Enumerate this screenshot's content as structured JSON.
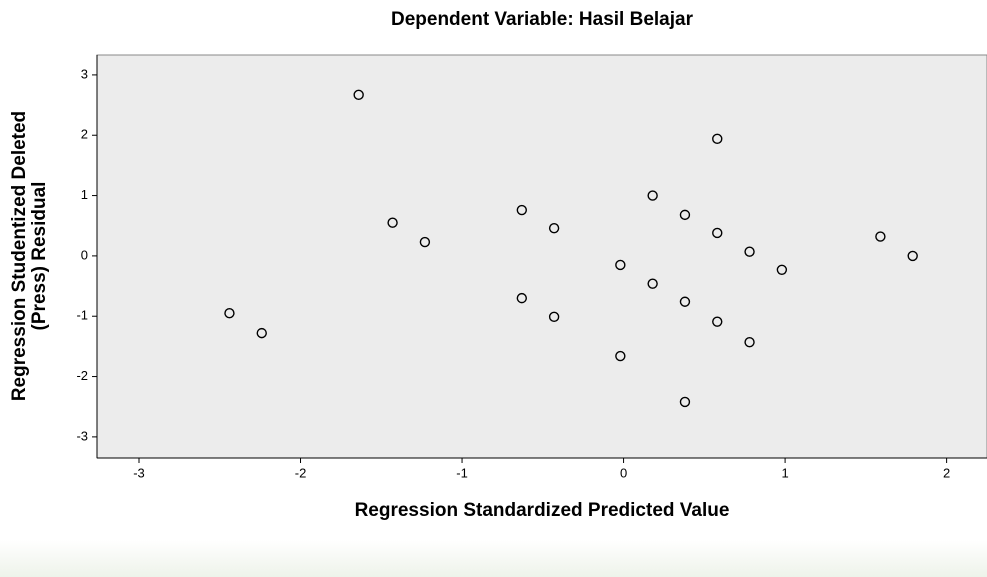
{
  "chart_data": {
    "type": "scatter",
    "title": "Dependent Variable: Hasil Belajar",
    "xlabel": "Regression Standardized Predicted Value",
    "ylabel": [
      "Regression Studentized Deleted",
      "(Press) Residual"
    ],
    "x": [
      -1.64,
      0.58,
      0.18,
      0.38,
      0.58,
      0.78,
      -1.43,
      -1.23,
      -0.63,
      -0.43,
      -0.02,
      0.98,
      1.59,
      1.79,
      -2.44,
      -2.24,
      -0.63,
      -0.43,
      0.18,
      0.38,
      0.58,
      0.78,
      -0.02,
      0.38
    ],
    "y": [
      2.67,
      1.94,
      1.0,
      0.68,
      0.38,
      0.07,
      0.55,
      0.23,
      0.76,
      0.46,
      -0.15,
      -0.23,
      0.32,
      0.0,
      -0.95,
      -1.28,
      -0.7,
      -1.01,
      -0.46,
      -0.76,
      -1.09,
      -1.43,
      -1.66,
      -2.42
    ],
    "color": "#000000",
    "xlim": [
      -3.26,
      2.25
    ],
    "xticks": [
      -3,
      -2,
      -1,
      0,
      1,
      2
    ],
    "ylim": [
      -3.35,
      3.33
    ],
    "yticks": [
      -3,
      -2,
      -1,
      0,
      1,
      2,
      3
    ]
  }
}
